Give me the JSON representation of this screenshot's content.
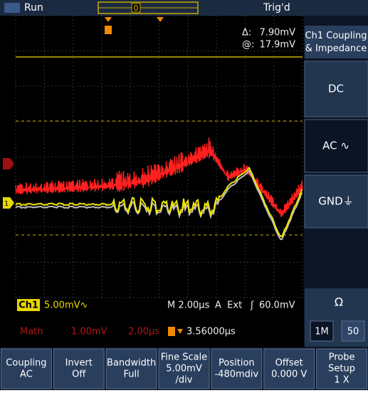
{
  "status_bar": {
    "run": "Run",
    "position_marker": "0",
    "trigger_state": "Trig'd"
  },
  "cursor_readout": {
    "delta_label": "Δ:",
    "delta": "7.90mV",
    "at_label": "@:",
    "at": "17.9mV"
  },
  "channel_marker": "1",
  "channel_readout": {
    "channel": "Ch1",
    "scale": "5.00mV∿",
    "timebase": "M 2.00µs",
    "trigger_source": "A  Ext",
    "trigger_slope": "ʃ",
    "trigger_level": "60.0mV"
  },
  "math_readout": {
    "label": "Math",
    "scale": "1.00mV",
    "time": "2.00µs",
    "trigger_position": "3.56000µs"
  },
  "side_menu": {
    "title": "Ch1 Coupling & Impedance",
    "items": [
      "DC",
      "AC ∿",
      "GND⏚"
    ],
    "impedance_label": "Ω",
    "impedance_options": [
      "1M",
      "50"
    ]
  },
  "bottom_menu": [
    {
      "lines": [
        "Coupling",
        "AC"
      ]
    },
    {
      "lines": [
        "Invert",
        "Off"
      ]
    },
    {
      "lines": [
        "Bandwidth",
        "Full"
      ]
    },
    {
      "lines": [
        "Fine Scale",
        "5.00mV",
        "/div"
      ]
    },
    {
      "lines": [
        "Position",
        "-480mdiv"
      ]
    },
    {
      "lines": [
        "Offset",
        "0.000 V"
      ]
    },
    {
      "lines": [
        "Probe",
        "Setup",
        "1 X"
      ]
    }
  ]
}
